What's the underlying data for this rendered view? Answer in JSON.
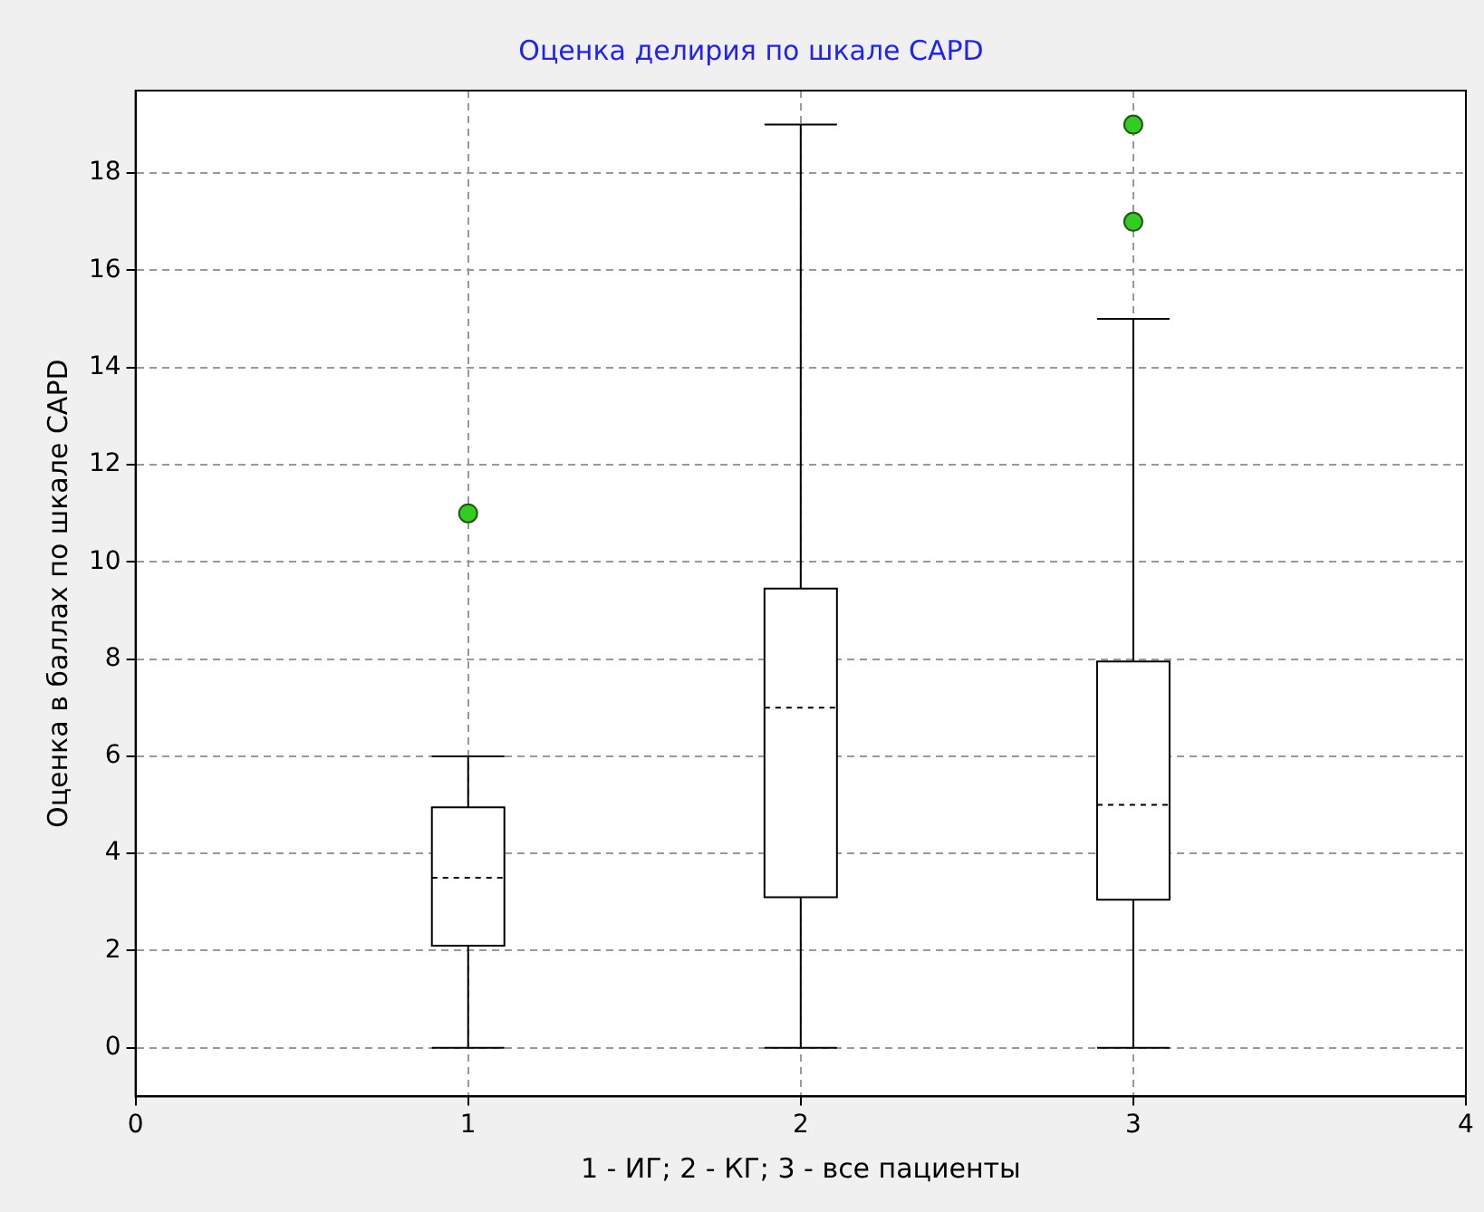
{
  "chart_data": {
    "type": "box",
    "title": "Оценка делирия по шкале CAPD",
    "xlabel": "1 - ИГ; 2 - КГ; 3 - все пациенты",
    "ylabel": "Оценка в баллах по шкале CAPD",
    "x": [
      1,
      2,
      3
    ],
    "xlim": [
      0,
      4
    ],
    "xticks": [
      0,
      1,
      2,
      3,
      4
    ],
    "ylim": [
      -1,
      19.7
    ],
    "yticks": [
      0,
      2,
      4,
      6,
      8,
      10,
      12,
      14,
      16,
      18
    ],
    "grid": true,
    "marker": "circle",
    "boxes": [
      {
        "low": 0,
        "q1": 2.1,
        "median": 3.5,
        "q3": 4.95,
        "high": 6,
        "outliers": [
          11
        ]
      },
      {
        "low": 0,
        "q1": 3.1,
        "median": 7,
        "q3": 9.45,
        "high": 19
      },
      {
        "low": 0,
        "q1": 3.05,
        "median": 5,
        "q3": 7.95,
        "high": 15,
        "outliers": [
          17,
          19
        ]
      }
    ]
  }
}
